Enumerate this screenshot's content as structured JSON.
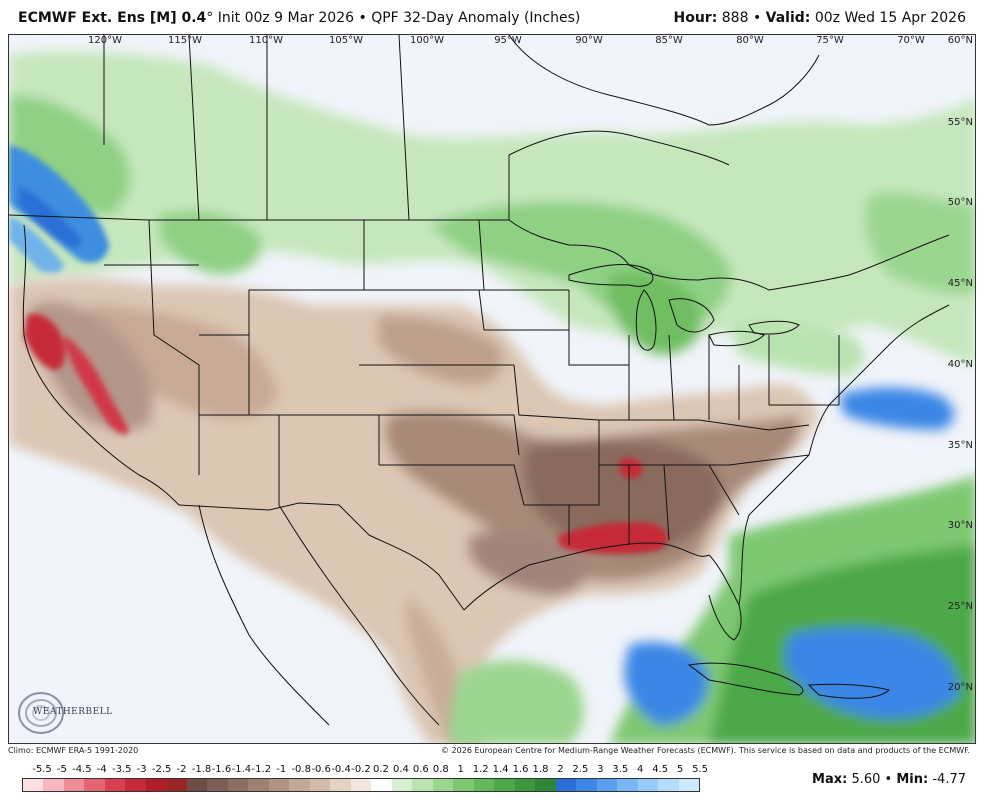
{
  "header": {
    "model": "ECMWF Ext. Ens [M] 0.4",
    "degree": "°",
    "details": "Init 00z 9 Mar 2026 • QPF 32-Day Anomaly (Inches)",
    "hour_label": "Hour:",
    "hour_value": "888",
    "sep": "•",
    "valid_label": "Valid:",
    "valid_value": "00z Wed 15 Apr 2026"
  },
  "map": {
    "longitude_labels": [
      "120°W",
      "115°W",
      "110°W",
      "105°W",
      "100°W",
      "95°W",
      "90°W",
      "85°W",
      "80°W",
      "75°W",
      "70°W"
    ],
    "latitude_labels": [
      "60°N",
      "55°N",
      "50°N",
      "45°N",
      "40°N",
      "35°N",
      "30°N",
      "25°N",
      "20°N"
    ],
    "logo_text": "WEATHERBELL"
  },
  "footer": {
    "climo": "Climo: ECMWF ERA-5 1991-2020",
    "copyright": "© 2026 European Centre for Medium-Range Weather Forecasts (ECMWF). This service is based on data and products of the ECMWF."
  },
  "colorbar": {
    "labels": [
      "-5.5",
      "-5",
      "-4.5",
      "-4",
      "-3.5",
      "-3",
      "-2.5",
      "-2",
      "-1.8",
      "-1.6",
      "-1.4",
      "-1.2",
      "-1",
      "-0.8",
      "-0.6",
      "-0.4",
      "-0.2",
      "0.2",
      "0.4",
      "0.6",
      "0.8",
      "1",
      "1.2",
      "1.4",
      "1.6",
      "1.8",
      "2",
      "2.5",
      "3",
      "3.5",
      "4",
      "4.5",
      "5",
      "5.5"
    ],
    "colors": [
      "#fde0e4",
      "#f9b8c0",
      "#f08d99",
      "#e46472",
      "#d84052",
      "#c62a39",
      "#b01e2a",
      "#9a2626",
      "#6e4d48",
      "#7d5d54",
      "#8e6e62",
      "#9f8071",
      "#b09383",
      "#c2a896",
      "#d3bca9",
      "#e4d2c2",
      "#f3e8de",
      "#ffffff",
      "#d7f0d2",
      "#b9e3b0",
      "#9bd690",
      "#7ec872",
      "#63b859",
      "#4ea84a",
      "#3e963f",
      "#2f8535",
      "#2a6fd6",
      "#3b86e6",
      "#5a9ef0",
      "#7ab5f5",
      "#97cbf8",
      "#b3dcfa",
      "#cdeafc"
    ]
  },
  "stats": {
    "max_label": "Max:",
    "max_value": "5.60",
    "sep": "•",
    "min_label": "Min:",
    "min_value": "-4.77"
  },
  "colors": {
    "dry_strong": "#c62a39",
    "dry_brown": "#8e6e62",
    "dry_tan": "#d3bca9",
    "wet_green": "#7ec872",
    "wet_pale": "#c8e8c0",
    "wet_blue": "#2a6fd6"
  }
}
